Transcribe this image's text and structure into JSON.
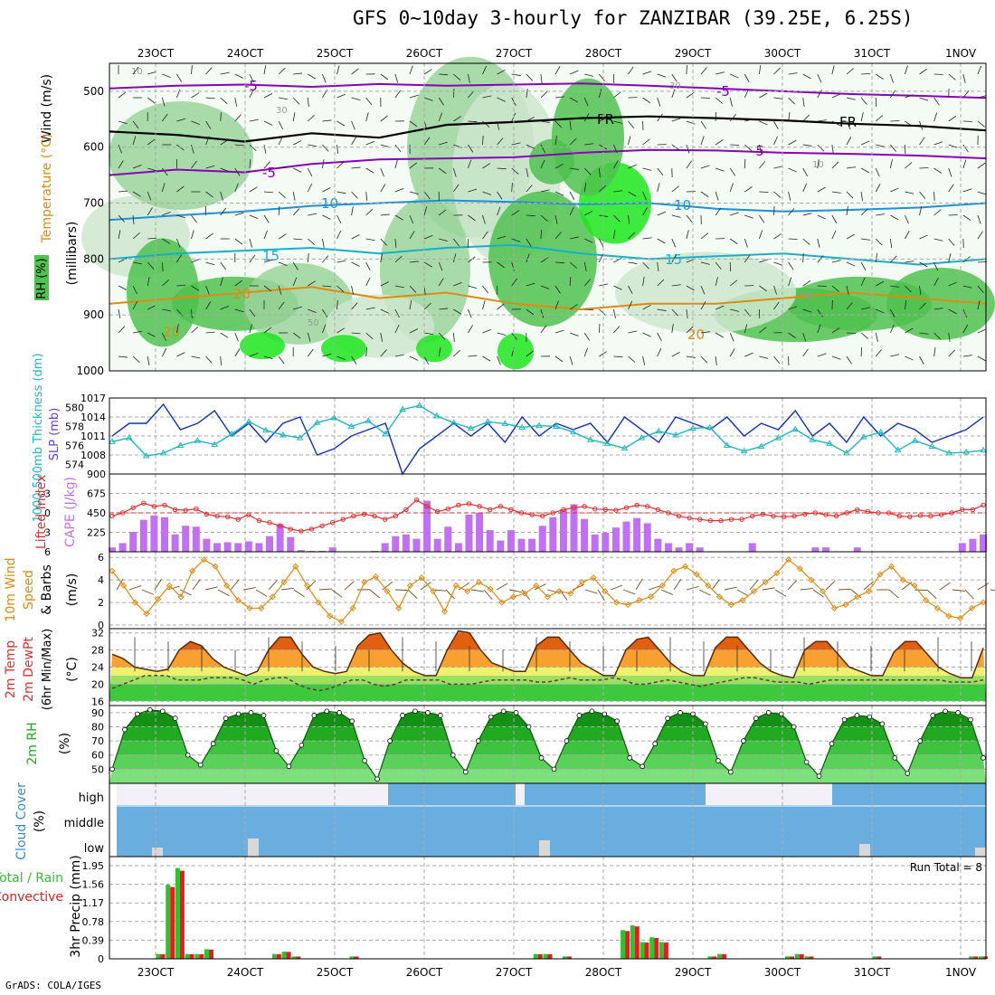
{
  "title": "GFS 0~10day 3-hourly for ZANZIBAR (39.25E, 6.25S)",
  "credit": "GrADS: COLA/IGES",
  "run_total": "Run Total = 8",
  "colors": {
    "rh_light": "#cfe6cf",
    "rh_mid": "#9bd39b",
    "rh_green": "#4fc24f",
    "rh_bright": "#1ee61e",
    "temp_purple": "#8a00b8",
    "temp_black": "#000000",
    "temp_blue": "#1e90d8",
    "temp_cyan": "#18b0c8",
    "temp_orange": "#e08a10",
    "slp": "#1030c0",
    "thickness": "#20b8c0",
    "cape": "#c070f0",
    "li": "#e03030",
    "wind10": "#e08a10",
    "precip_green": "#30c030",
    "precip_red": "#e02020",
    "cloud": "#6aaee0"
  },
  "chart_data": [
    {
      "type": "heatmap",
      "panel": "upper-air",
      "ylabel_rh": "RH (%)",
      "ylabel_temp": "Temperature (°C)",
      "ylabel_wind": "Wind (m/s)",
      "ylabel_pressure": "(millibars)",
      "y_ticks": [
        "500",
        "600",
        "700",
        "800",
        "900",
        "1000"
      ],
      "ylim": [
        1000,
        450
      ],
      "x_ticks": [
        "23OCT",
        "24OCT",
        "25OCT",
        "26OCT",
        "27OCT",
        "28OCT",
        "29OCT",
        "30OCT",
        "31OCT",
        "1NOV"
      ],
      "contour_labels": [
        "-5",
        "-5",
        "-5",
        "FR",
        "FR",
        "-5",
        "10",
        "10",
        "15",
        "15",
        "20",
        "20",
        "20",
        "30",
        "30",
        "10",
        "10",
        "50",
        "50"
      ],
      "isotherms": [
        {
          "name": "-5 upper",
          "level_mb": [
            495,
            490,
            488,
            492,
            487,
            490,
            488,
            486,
            490,
            495,
            500,
            505,
            508,
            512
          ]
        },
        {
          "name": "FR",
          "level_mb": [
            572,
            578,
            590,
            575,
            583,
            560,
            555,
            548,
            545,
            548,
            552,
            558,
            562,
            570
          ]
        },
        {
          "name": "-5 lower",
          "level_mb": [
            650,
            640,
            645,
            630,
            622,
            620,
            618,
            610,
            605,
            606,
            610,
            612,
            615,
            620
          ]
        },
        {
          "name": "10",
          "level_mb": [
            730,
            722,
            715,
            705,
            700,
            695,
            698,
            702,
            700,
            710,
            715,
            712,
            708,
            700
          ]
        },
        {
          "name": "15",
          "level_mb": [
            800,
            790,
            785,
            780,
            790,
            780,
            775,
            790,
            800,
            795,
            790,
            800,
            810,
            800
          ]
        },
        {
          "name": "20",
          "level_mb": [
            880,
            870,
            860,
            850,
            870,
            860,
            880,
            890,
            880,
            880,
            870,
            860,
            870,
            880
          ]
        }
      ]
    },
    {
      "type": "line",
      "panel": "slp-thickness",
      "ylabel_left": "1000-500mb Thickness (dm)",
      "ylabel_right": "SLP (mb)",
      "left_ticks": [
        "580",
        "578",
        "576",
        "574"
      ],
      "right_ticks": [
        "1017",
        "1014",
        "1011",
        "1008"
      ],
      "ylim_left": [
        573,
        581
      ],
      "ylim_right": [
        1005,
        1017
      ],
      "series": [
        {
          "name": "SLP (mb)",
          "values": [
            1011,
            1013,
            1013,
            1016,
            1012,
            1013,
            1015,
            1011,
            1013,
            1010,
            1013,
            1014,
            1008,
            1009,
            1011,
            1012,
            1013,
            1005,
            1009,
            1011,
            1013,
            1011,
            1013,
            1010,
            1014,
            1011,
            1013,
            1012,
            1013,
            1010,
            1014,
            1012,
            1010,
            1014,
            1013,
            1012,
            1014,
            1011,
            1013,
            1012,
            1015,
            1011,
            1013,
            1010,
            1014,
            1011,
            1013,
            1012,
            1010,
            1011,
            1012,
            1014
          ]
        },
        {
          "name": "1000-500mb Thickness (dm)",
          "values": [
            576.4,
            576.8,
            574.9,
            575.2,
            576.0,
            576.5,
            576.1,
            577.2,
            578.5,
            577.6,
            577.1,
            576.8,
            578.4,
            578.9,
            578.0,
            578.6,
            577.2,
            579.8,
            580.2,
            579.1,
            578.4,
            577.8,
            578.5,
            578.3,
            577.9,
            578.1,
            578.0,
            577.4,
            576.6,
            576.2,
            575.7,
            576.8,
            577.5,
            577.1,
            577.8,
            577.9,
            576.0,
            575.4,
            575.9,
            576.8,
            577.7,
            576.6,
            576.2,
            575.2,
            576.9,
            577.4,
            575.5,
            576.5,
            575.9,
            575.2,
            575.3,
            575.5
          ]
        }
      ]
    },
    {
      "type": "bar",
      "panel": "cape-li",
      "ylabel_left": "Lifted Index",
      "ylabel_right": "CAPE (J/kg)",
      "left_ticks": [
        "-3",
        "0",
        "3",
        "6"
      ],
      "right_ticks": [
        "900",
        "675",
        "450",
        "225"
      ],
      "ylim_cape": [
        0,
        900
      ],
      "ylim_li": [
        6,
        -6
      ],
      "series": [
        {
          "name": "CAPE (J/kg)",
          "values": [
            50,
            100,
            230,
            370,
            420,
            400,
            200,
            300,
            290,
            150,
            100,
            110,
            100,
            120,
            100,
            180,
            320,
            170,
            20,
            10,
            10,
            50,
            0,
            0,
            0,
            10,
            100,
            180,
            200,
            150,
            590,
            150,
            290,
            100,
            430,
            450,
            250,
            130,
            250,
            150,
            150,
            300,
            400,
            490,
            550,
            380,
            200,
            220,
            280,
            350,
            390,
            330,
            150,
            100,
            50,
            100,
            50,
            0,
            0,
            0,
            0,
            100,
            0,
            0,
            0,
            0,
            0,
            50,
            50,
            0,
            0,
            50,
            0,
            0,
            0,
            0,
            0,
            0,
            0,
            0,
            0,
            100,
            150,
            200
          ]
        },
        {
          "name": "Lifted Index",
          "values": [
            0.5,
            0,
            -0.8,
            -1.5,
            -1.0,
            -1.2,
            -0.5,
            -0.4,
            -0.6,
            0.2,
            0.5,
            0.6,
            1.0,
            0.3,
            1.2,
            1.5,
            2.0,
            2.5,
            2.8,
            2.5,
            2.0,
            1.5,
            1.0,
            0.5,
            0.2,
            0.5,
            1.0,
            0.5,
            -0.5,
            -2.0,
            -1.0,
            -0.2,
            -0.6,
            -1.2,
            -1.4,
            -1.0,
            -0.5,
            -1.0,
            -0.5,
            0,
            0.3,
            0.5,
            0,
            -0.5,
            -0.8,
            -1.0,
            -0.6,
            -0.5,
            -0.4,
            -0.8,
            -1.2,
            -1.0,
            -0.5,
            0,
            0.5,
            0.8,
            1.0,
            1.2,
            1.2,
            1.0,
            1.0,
            0.5,
            0.2,
            0.5,
            0.6,
            0.5,
            0.2,
            0.0,
            0.3,
            0.5,
            0.0,
            -0.5,
            -0.2,
            0.0,
            0.0,
            0.5,
            0.6,
            0.4,
            0.5,
            0.3,
            0.0,
            -0.5,
            -0.5,
            -1.2
          ]
        }
      ]
    },
    {
      "type": "line",
      "panel": "wind10m",
      "ylabel": "10m Wind Speed & Barbs (m/s)",
      "ylabel_lines": [
        "10m Wind",
        "Speed",
        "& Barbs"
      ],
      "ylabel_unit": "(m/s)",
      "ylim": [
        0,
        6.5
      ],
      "y_ticks": [
        "0",
        "2",
        "4",
        "6"
      ],
      "series": [
        {
          "name": "10m Wind Speed",
          "values": [
            4.8,
            3.5,
            2.0,
            1.0,
            2.3,
            3.5,
            2.5,
            4.8,
            5.8,
            5.2,
            3.5,
            2.2,
            1.5,
            1.5,
            2.5,
            3.8,
            5.2,
            3.5,
            2.0,
            0.8,
            0.3,
            1.5,
            3.8,
            4.3,
            3.0,
            1.5,
            3.5,
            4.2,
            3.0,
            1.2,
            3.5,
            3.0,
            3.8,
            3.2,
            2.0,
            2.5,
            2.8,
            3.5,
            2.5,
            3.0,
            2.8,
            3.8,
            4.2,
            3.0,
            2.0,
            1.8,
            2.2,
            2.5,
            3.5,
            4.8,
            5.2,
            4.5,
            3.5,
            2.5,
            1.8,
            2.2,
            3.0,
            3.8,
            4.6,
            5.8,
            5.0,
            4.0,
            3.0,
            1.5,
            1.8,
            2.5,
            3.0,
            4.5,
            5.2,
            4.0,
            3.5,
            2.2,
            1.5,
            0.8,
            0.6,
            1.5,
            2.0
          ]
        }
      ]
    },
    {
      "type": "area",
      "panel": "temp2m",
      "ylabel": "2m Temp 2m DewPt (6hr Min/Max) (°C)",
      "ylabel_lines": [
        "2m Temp",
        "2m DewPt",
        "(6hr Min/Max)"
      ],
      "ylabel_unit": "(°C)",
      "ylim": [
        15,
        33
      ],
      "y_ticks": [
        "16",
        "20",
        "24",
        "28",
        "32"
      ],
      "series": [
        {
          "name": "2m Temp",
          "values": [
            27,
            26,
            24,
            23.5,
            23,
            23.5,
            28,
            30,
            29,
            26,
            24,
            23,
            22,
            23,
            28,
            31,
            31,
            27,
            24,
            23,
            22.5,
            23,
            29,
            31.5,
            32,
            28,
            25,
            23,
            22,
            22,
            28,
            32.5,
            32,
            28,
            25,
            24,
            23,
            23,
            29,
            31,
            31,
            28,
            25,
            23.5,
            22,
            22,
            28,
            30.5,
            31,
            28,
            25,
            23,
            22,
            22,
            28.5,
            31,
            31,
            28,
            25,
            23,
            22,
            21.5,
            28,
            30,
            30,
            27,
            24,
            23,
            22,
            22,
            27.5,
            30,
            30,
            27,
            24,
            22.5,
            21.5,
            21.5,
            28.5
          ]
        },
        {
          "name": "2m DewPt",
          "values": [
            19,
            20,
            21,
            22,
            22,
            22,
            21,
            21,
            21,
            21.5,
            21.5,
            21.5,
            21,
            20,
            21,
            21.5,
            21.5,
            20,
            19,
            18.5,
            19,
            20,
            21,
            21,
            20,
            19.5,
            20,
            21,
            21,
            21,
            21,
            20,
            20,
            20,
            20.5,
            21,
            21,
            21,
            21,
            20.5,
            20.5,
            21,
            21.5,
            21,
            21,
            21,
            21.5,
            21,
            20,
            20,
            20.5,
            21,
            20.5,
            20,
            19.5,
            20,
            20.5,
            21,
            21.5,
            21.5,
            21,
            20.5,
            20.5,
            20.5,
            20,
            20.5,
            21,
            21,
            21,
            21,
            21,
            21,
            21,
            21,
            21,
            21,
            21,
            20.5,
            20.5,
            20.5,
            21
          ]
        }
      ]
    },
    {
      "type": "area",
      "panel": "rh2m",
      "ylabel": "2m RH (%)",
      "ylabel_lines": [
        "2m RH"
      ],
      "ylabel_unit": "(%)",
      "ylim": [
        40,
        95
      ],
      "y_ticks": [
        "50",
        "60",
        "70",
        "80",
        "90"
      ],
      "series": [
        {
          "name": "2m RH",
          "values": [
            50,
            78,
            89,
            92,
            91,
            86,
            60,
            53,
            68,
            86,
            89,
            90,
            88,
            63,
            52,
            67,
            88,
            91,
            90,
            84,
            56,
            43,
            70,
            88,
            91,
            90,
            88,
            60,
            48,
            70,
            87,
            91,
            90,
            80,
            58,
            50,
            70,
            88,
            91,
            89,
            84,
            58,
            52,
            68,
            86,
            90,
            89,
            82,
            56,
            48,
            70,
            86,
            90,
            89,
            80,
            55,
            45,
            68,
            85,
            88,
            87,
            82,
            58,
            47,
            70,
            88,
            91,
            90,
            85,
            58
          ]
        }
      ]
    },
    {
      "type": "bar",
      "panel": "cloud",
      "ylabel": "Cloud Cover (%)",
      "ylabel_title": "Cloud Cover",
      "ylabel_unit": "(%)",
      "levels": [
        "high",
        "middle",
        "low"
      ]
    },
    {
      "type": "bar",
      "panel": "precip",
      "ylabel": "3hr Precip (mm)",
      "ylabel_left": "Total / Rain",
      "ylabel_left2": "Convective",
      "y_ticks": [
        "0",
        "0.39",
        "0.78",
        "1.17",
        "1.56",
        "1.95"
      ],
      "ylim": [
        0,
        1.95
      ],
      "series": [
        {
          "name": "Total / Rain",
          "values": [
            0,
            0,
            0,
            0,
            0,
            0.1,
            1.55,
            1.9,
            0.1,
            0.1,
            0.2,
            0,
            0,
            0,
            0,
            0,
            0,
            0.1,
            0.15,
            0.05,
            0,
            0,
            0,
            0,
            0,
            0.05,
            0,
            0,
            0,
            0,
            0,
            0,
            0,
            0,
            0,
            0,
            0,
            0,
            0,
            0,
            0,
            0,
            0,
            0,
            0.1,
            0.1,
            0,
            0.05,
            0,
            0,
            0,
            0,
            0,
            0.6,
            0.7,
            0.35,
            0.45,
            0.35,
            0,
            0,
            0,
            0,
            0.05,
            0.1,
            0,
            0,
            0,
            0,
            0,
            0,
            0.05,
            0.1,
            0.05,
            0,
            0,
            0,
            0,
            0,
            0,
            0.05,
            0,
            0,
            0,
            0,
            0,
            0,
            0,
            0,
            0,
            0.05,
            0.05
          ]
        }
      ]
    }
  ]
}
